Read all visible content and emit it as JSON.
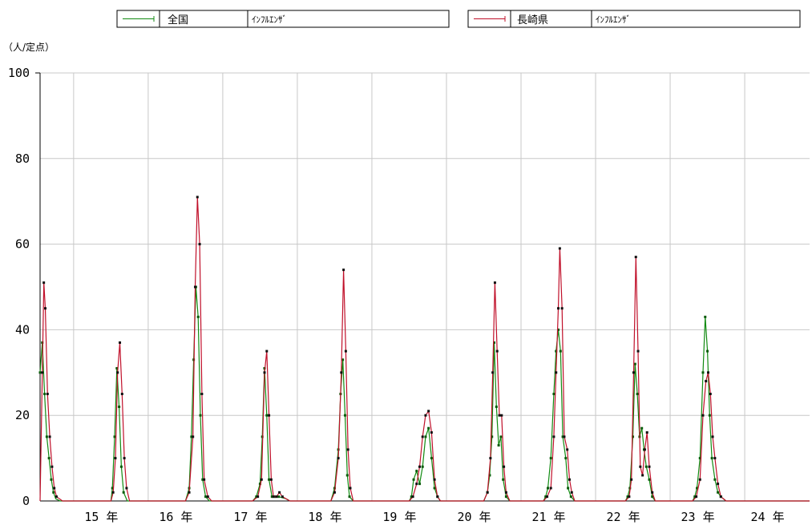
{
  "chart_data": {
    "type": "line",
    "ylabel": "（人/定点）",
    "ylim": [
      0,
      100
    ],
    "yticks": [
      0,
      20,
      40,
      60,
      80,
      100
    ],
    "xlim": [
      14.55,
      24.87
    ],
    "year_ticks": [
      15,
      16,
      17,
      18,
      19,
      20,
      21,
      22,
      23,
      24
    ],
    "year_tick_labels": [
      "15 年",
      "16 年",
      "17 年",
      "18 年",
      "19 年",
      "20 年",
      "21 年",
      "22 年",
      "23 年",
      "24 年"
    ],
    "grid": true,
    "legend": [
      {
        "label": "全国",
        "sub": "ｲﾝﾌﾙｴﾝｻﾞ",
        "color": "#118a11"
      },
      {
        "label": "長崎県",
        "sub": "ｲﾝﾌﾙｴﾝｻﾞ",
        "color": "#c0102a"
      }
    ],
    "series": [
      {
        "name": "全国",
        "color": "#118a11",
        "points": [
          [
            14.55,
            30
          ],
          [
            14.58,
            37
          ],
          [
            14.61,
            25
          ],
          [
            14.64,
            15
          ],
          [
            14.67,
            10
          ],
          [
            14.7,
            5
          ],
          [
            14.73,
            2
          ],
          [
            14.76,
            0.5
          ],
          [
            14.82,
            0
          ],
          [
            15.5,
            0
          ],
          [
            15.52,
            3
          ],
          [
            15.55,
            15
          ],
          [
            15.58,
            31
          ],
          [
            15.61,
            22
          ],
          [
            15.64,
            8
          ],
          [
            15.67,
            2
          ],
          [
            15.72,
            0
          ],
          [
            16.5,
            0
          ],
          [
            16.55,
            3
          ],
          [
            16.58,
            15
          ],
          [
            16.61,
            33
          ],
          [
            16.64,
            50
          ],
          [
            16.67,
            43
          ],
          [
            16.7,
            20
          ],
          [
            16.73,
            5
          ],
          [
            16.77,
            1
          ],
          [
            16.82,
            0
          ],
          [
            17.4,
            0
          ],
          [
            17.45,
            1
          ],
          [
            17.5,
            4
          ],
          [
            17.53,
            15
          ],
          [
            17.56,
            31
          ],
          [
            17.59,
            20
          ],
          [
            17.62,
            5
          ],
          [
            17.66,
            1
          ],
          [
            17.7,
            1
          ],
          [
            17.75,
            1
          ],
          [
            17.85,
            0.5
          ],
          [
            17.9,
            0
          ],
          [
            18.45,
            0
          ],
          [
            18.5,
            3
          ],
          [
            18.55,
            12
          ],
          [
            18.58,
            25
          ],
          [
            18.61,
            33
          ],
          [
            18.64,
            20
          ],
          [
            18.67,
            6
          ],
          [
            18.7,
            1
          ],
          [
            18.75,
            0
          ],
          [
            19.5,
            0
          ],
          [
            19.53,
            1
          ],
          [
            19.56,
            5
          ],
          [
            19.6,
            7
          ],
          [
            19.64,
            4
          ],
          [
            19.68,
            8
          ],
          [
            19.72,
            15
          ],
          [
            19.76,
            17
          ],
          [
            19.8,
            10
          ],
          [
            19.84,
            3
          ],
          [
            19.88,
            1
          ],
          [
            19.92,
            0
          ],
          [
            20.5,
            0
          ],
          [
            20.55,
            2
          ],
          [
            20.58,
            6
          ],
          [
            20.61,
            15
          ],
          [
            20.64,
            37
          ],
          [
            20.67,
            22
          ],
          [
            20.7,
            13
          ],
          [
            20.73,
            15
          ],
          [
            20.76,
            5
          ],
          [
            20.8,
            1
          ],
          [
            20.85,
            0
          ],
          [
            21.3,
            0
          ],
          [
            21.33,
            1
          ],
          [
            21.36,
            3
          ],
          [
            21.4,
            10
          ],
          [
            21.44,
            25
          ],
          [
            21.47,
            35
          ],
          [
            21.5,
            40
          ],
          [
            21.53,
            35
          ],
          [
            21.56,
            15
          ],
          [
            21.6,
            10
          ],
          [
            21.63,
            3
          ],
          [
            21.67,
            1
          ],
          [
            21.72,
            0
          ],
          [
            22.4,
            0
          ],
          [
            22.43,
            1
          ],
          [
            22.46,
            3
          ],
          [
            22.5,
            15
          ],
          [
            22.53,
            32
          ],
          [
            22.56,
            25
          ],
          [
            22.59,
            15
          ],
          [
            22.62,
            17
          ],
          [
            22.65,
            12
          ],
          [
            22.68,
            8
          ],
          [
            22.72,
            5
          ],
          [
            22.76,
            1
          ],
          [
            22.8,
            0
          ],
          [
            23.3,
            0
          ],
          [
            23.33,
            1
          ],
          [
            23.36,
            3
          ],
          [
            23.4,
            10
          ],
          [
            23.44,
            30
          ],
          [
            23.47,
            43
          ],
          [
            23.5,
            35
          ],
          [
            23.53,
            20
          ],
          [
            23.56,
            10
          ],
          [
            23.6,
            5
          ],
          [
            23.64,
            2
          ],
          [
            23.68,
            1
          ],
          [
            23.75,
            0
          ],
          [
            24.87,
            0
          ]
        ]
      },
      {
        "name": "長崎県",
        "color": "#c0102a",
        "points": [
          [
            14.55,
            0
          ],
          [
            14.58,
            30
          ],
          [
            14.6,
            51
          ],
          [
            14.62,
            45
          ],
          [
            14.65,
            25
          ],
          [
            14.68,
            15
          ],
          [
            14.71,
            8
          ],
          [
            14.74,
            3
          ],
          [
            14.77,
            1
          ],
          [
            14.85,
            0
          ],
          [
            15.5,
            0
          ],
          [
            15.53,
            2
          ],
          [
            15.56,
            10
          ],
          [
            15.59,
            30
          ],
          [
            15.62,
            37
          ],
          [
            15.65,
            25
          ],
          [
            15.68,
            10
          ],
          [
            15.71,
            3
          ],
          [
            15.75,
            0
          ],
          [
            16.5,
            0
          ],
          [
            16.55,
            2
          ],
          [
            16.6,
            15
          ],
          [
            16.63,
            50
          ],
          [
            16.66,
            71
          ],
          [
            16.69,
            60
          ],
          [
            16.72,
            25
          ],
          [
            16.75,
            5
          ],
          [
            16.8,
            1
          ],
          [
            16.85,
            0
          ],
          [
            17.4,
            0
          ],
          [
            17.47,
            1
          ],
          [
            17.52,
            5
          ],
          [
            17.56,
            30
          ],
          [
            17.59,
            35
          ],
          [
            17.62,
            20
          ],
          [
            17.65,
            5
          ],
          [
            17.68,
            1
          ],
          [
            17.72,
            1
          ],
          [
            17.76,
            2
          ],
          [
            17.8,
            1
          ],
          [
            17.9,
            0
          ],
          [
            18.45,
            0
          ],
          [
            18.5,
            2
          ],
          [
            18.55,
            10
          ],
          [
            18.59,
            30
          ],
          [
            18.62,
            54
          ],
          [
            18.65,
            35
          ],
          [
            18.68,
            12
          ],
          [
            18.71,
            3
          ],
          [
            18.75,
            0
          ],
          [
            19.5,
            0
          ],
          [
            19.55,
            1
          ],
          [
            19.6,
            4
          ],
          [
            19.64,
            8
          ],
          [
            19.68,
            15
          ],
          [
            19.72,
            20
          ],
          [
            19.76,
            21
          ],
          [
            19.8,
            16
          ],
          [
            19.84,
            5
          ],
          [
            19.88,
            1
          ],
          [
            19.92,
            0
          ],
          [
            20.5,
            0
          ],
          [
            20.55,
            2
          ],
          [
            20.59,
            10
          ],
          [
            20.62,
            30
          ],
          [
            20.65,
            51
          ],
          [
            20.68,
            35
          ],
          [
            20.71,
            20
          ],
          [
            20.74,
            20
          ],
          [
            20.77,
            8
          ],
          [
            20.8,
            2
          ],
          [
            20.85,
            0
          ],
          [
            21.3,
            0
          ],
          [
            21.35,
            1
          ],
          [
            21.4,
            3
          ],
          [
            21.44,
            15
          ],
          [
            21.47,
            30
          ],
          [
            21.5,
            45
          ],
          [
            21.52,
            59
          ],
          [
            21.55,
            45
          ],
          [
            21.58,
            15
          ],
          [
            21.62,
            12
          ],
          [
            21.65,
            5
          ],
          [
            21.68,
            2
          ],
          [
            21.72,
            0
          ],
          [
            22.4,
            0
          ],
          [
            22.45,
            1
          ],
          [
            22.48,
            5
          ],
          [
            22.51,
            30
          ],
          [
            22.54,
            57
          ],
          [
            22.57,
            35
          ],
          [
            22.6,
            8
          ],
          [
            22.63,
            6
          ],
          [
            22.66,
            12
          ],
          [
            22.69,
            16
          ],
          [
            22.72,
            8
          ],
          [
            22.76,
            2
          ],
          [
            22.8,
            0
          ],
          [
            23.3,
            0
          ],
          [
            23.35,
            1
          ],
          [
            23.4,
            5
          ],
          [
            23.44,
            20
          ],
          [
            23.48,
            28
          ],
          [
            23.51,
            30
          ],
          [
            23.54,
            25
          ],
          [
            23.57,
            15
          ],
          [
            23.6,
            10
          ],
          [
            23.64,
            4
          ],
          [
            23.68,
            1
          ],
          [
            23.75,
            0
          ],
          [
            24.87,
            0
          ]
        ]
      }
    ]
  }
}
